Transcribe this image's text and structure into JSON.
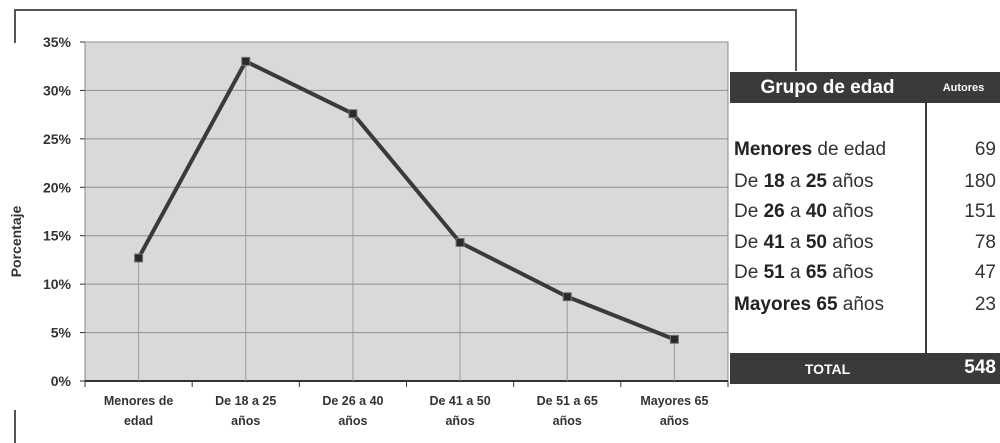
{
  "chart_data": {
    "type": "line",
    "ylabel": "Porcentaje",
    "xlabel": "",
    "categories": [
      [
        "Menores de",
        "edad"
      ],
      [
        "De 18 a 25",
        "años"
      ],
      [
        "De 26 a 40",
        "años"
      ],
      [
        "De 41 a 50",
        "años"
      ],
      [
        "De 51 a 65",
        "años"
      ],
      [
        "Mayores 65",
        "años"
      ]
    ],
    "values": [
      12.7,
      33.0,
      27.6,
      14.3,
      8.7,
      4.3
    ],
    "ylim": [
      0,
      35
    ],
    "yticks": [
      "0%",
      "5%",
      "10%",
      "15%",
      "20%",
      "25%",
      "30%",
      "35%"
    ],
    "grid": true,
    "plot_bg": "#d9d9d9",
    "line_color": "#3a3a3a"
  },
  "table": {
    "header_group": "Grupo de edad",
    "header_authors": "Autores",
    "rows": [
      {
        "bold": "Menores",
        "rest": " de edad",
        "value": "69"
      },
      {
        "pre": "De ",
        "b1": "18",
        "mid": " a ",
        "b2": "25",
        "post": " años",
        "value": "180"
      },
      {
        "pre": "De ",
        "b1": "26",
        "mid": " a ",
        "b2": "40",
        "post": " años",
        "value": "151"
      },
      {
        "pre": "De ",
        "b1": "41",
        "mid": " a ",
        "b2": "50",
        "post": " años",
        "value": "78"
      },
      {
        "pre": "De ",
        "b1": "51",
        "mid": " a ",
        "b2": "65",
        "post": " años",
        "value": "47"
      },
      {
        "bold": "Mayores 65",
        "rest": " años",
        "value": "23"
      }
    ],
    "total_label": "TOTAL",
    "total_value": "548"
  }
}
